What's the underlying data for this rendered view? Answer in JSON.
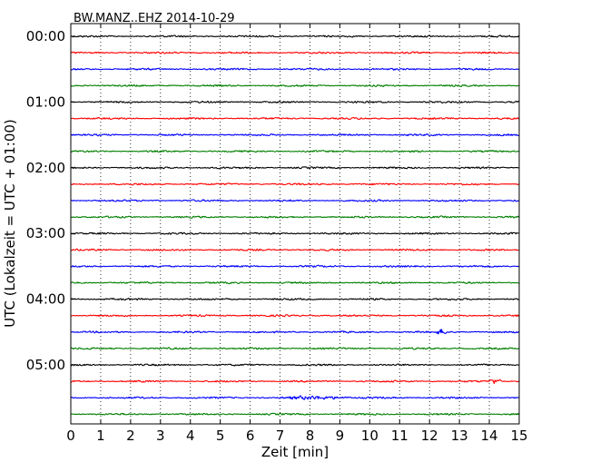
{
  "chart_data": {
    "type": "line",
    "subtype": "seismogram-dayplot",
    "title": "BW.MANZ..EHZ 2014-10-29",
    "xlabel": "Zeit  [min]",
    "ylabel": "UTC (Lokalzeit = UTC + 01:00)",
    "xlim": [
      0,
      15
    ],
    "x_ticks": [
      "0",
      "1",
      "2",
      "3",
      "4",
      "5",
      "6",
      "7",
      "8",
      "9",
      "10",
      "11",
      "12",
      "13",
      "14",
      "15"
    ],
    "y_ticks": [
      "00:00",
      "01:00",
      "02:00",
      "03:00",
      "04:00",
      "05:00"
    ],
    "vertical_grid": "dotted",
    "trace_colors": [
      "#000000",
      "#ff0000",
      "#0000ff",
      "#007f00"
    ],
    "minutes_per_row": 15,
    "rows": [
      {
        "start": "00:00",
        "color": "#000000"
      },
      {
        "start": "00:15",
        "color": "#ff0000"
      },
      {
        "start": "00:30",
        "color": "#0000ff"
      },
      {
        "start": "00:45",
        "color": "#007f00"
      },
      {
        "start": "01:00",
        "color": "#000000"
      },
      {
        "start": "01:15",
        "color": "#ff0000"
      },
      {
        "start": "01:30",
        "color": "#0000ff"
      },
      {
        "start": "01:45",
        "color": "#007f00"
      },
      {
        "start": "02:00",
        "color": "#000000"
      },
      {
        "start": "02:15",
        "color": "#ff0000"
      },
      {
        "start": "02:30",
        "color": "#0000ff"
      },
      {
        "start": "02:45",
        "color": "#007f00"
      },
      {
        "start": "03:00",
        "color": "#000000"
      },
      {
        "start": "03:15",
        "color": "#ff0000"
      },
      {
        "start": "03:30",
        "color": "#0000ff"
      },
      {
        "start": "03:45",
        "color": "#007f00"
      },
      {
        "start": "04:00",
        "color": "#000000"
      },
      {
        "start": "04:15",
        "color": "#ff0000"
      },
      {
        "start": "04:30",
        "color": "#0000ff",
        "event_at_min": 12.4
      },
      {
        "start": "04:45",
        "color": "#007f00"
      },
      {
        "start": "05:00",
        "color": "#000000"
      },
      {
        "start": "05:15",
        "color": "#ff0000",
        "event_at_min": 14.2
      },
      {
        "start": "05:30",
        "color": "#0000ff",
        "event_window_min": [
          7.0,
          9.5
        ]
      },
      {
        "start": "05:45",
        "color": "#007f00"
      }
    ]
  }
}
